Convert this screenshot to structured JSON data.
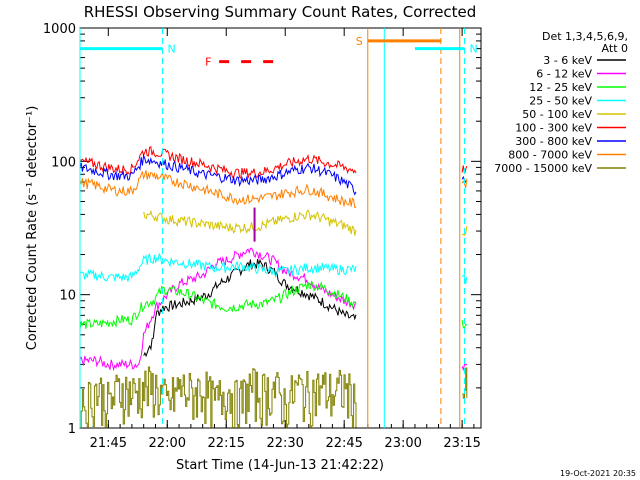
{
  "footer_timestamp": "19-Oct-2021 20:35",
  "chart_data": {
    "type": "line",
    "title": "RHESSI Observing Summary Count Rates, Corrected",
    "xlabel": "Start Time (14-Jun-13 21:42:22)",
    "ylabel": "Corrected Count Rate (s⁻¹ detector⁻¹)",
    "yscale": "log",
    "ylim": [
      1,
      1000
    ],
    "xlim_minutes": [
      21.63,
      23.33
    ],
    "x_ticks": [
      {
        "label": "21:45",
        "t": 21.75
      },
      {
        "label": "22:00",
        "t": 22.0
      },
      {
        "label": "22:15",
        "t": 22.25
      },
      {
        "label": "22:30",
        "t": 22.5
      },
      {
        "label": "22:45",
        "t": 22.75
      },
      {
        "label": "23:00",
        "t": 23.0
      },
      {
        "label": "23:15",
        "t": 23.25
      }
    ],
    "y_ticks": [
      {
        "label": "1",
        "v": 1
      },
      {
        "label": "10",
        "v": 10
      },
      {
        "label": "100",
        "v": 100
      },
      {
        "label": "1000",
        "v": 1000
      }
    ],
    "legend": {
      "placement": "right",
      "header": [
        "Det 1,3,4,5,6,9,",
        "Att 0"
      ],
      "entries": [
        {
          "name": "3 - 6 keV",
          "color": "#000000"
        },
        {
          "name": "6 - 12 keV",
          "color": "#ff00ff"
        },
        {
          "name": "12 - 25 keV",
          "color": "#00ff00"
        },
        {
          "name": "25 - 50 keV",
          "color": "#00ffff"
        },
        {
          "name": "50 - 100 keV",
          "color": "#d4c300"
        },
        {
          "name": "100 - 300 keV",
          "color": "#ff0000"
        },
        {
          "name": "300 - 800 keV",
          "color": "#0000ff"
        },
        {
          "name": "800 - 7000 keV",
          "color": "#ff8000"
        },
        {
          "name": "7000 - 15000 keV",
          "color": "#808000"
        }
      ]
    },
    "segments": [
      [
        21.63,
        23.17
      ],
      [
        23.25,
        23.27
      ]
    ],
    "series": [
      {
        "name": "3 - 6 keV",
        "color": "#000000",
        "points": [
          [
            21.9,
            3.5
          ],
          [
            21.94,
            4.5
          ],
          [
            21.95,
            7
          ],
          [
            21.98,
            8
          ],
          [
            22.05,
            8.5
          ],
          [
            22.1,
            9
          ],
          [
            22.17,
            10
          ],
          [
            22.22,
            12
          ],
          [
            22.3,
            15
          ],
          [
            22.35,
            17
          ],
          [
            22.4,
            17
          ],
          [
            22.45,
            15
          ],
          [
            22.5,
            12
          ],
          [
            22.55,
            11
          ],
          [
            22.6,
            10
          ],
          [
            22.65,
            9
          ],
          [
            22.7,
            8
          ],
          [
            22.75,
            7
          ],
          [
            22.8,
            6.5
          ]
        ]
      },
      {
        "name": "6 - 12 keV",
        "color": "#ff00ff",
        "points": [
          [
            21.63,
            3.2
          ],
          [
            21.7,
            3.2
          ],
          [
            21.75,
            3.0
          ],
          [
            21.8,
            3.0
          ],
          [
            21.85,
            3.0
          ],
          [
            21.88,
            3.0
          ],
          [
            21.9,
            5
          ],
          [
            21.95,
            8
          ],
          [
            22.0,
            10
          ],
          [
            22.05,
            12
          ],
          [
            22.1,
            13
          ],
          [
            22.15,
            14
          ],
          [
            22.2,
            17
          ],
          [
            22.25,
            18
          ],
          [
            22.3,
            20
          ],
          [
            22.35,
            22
          ],
          [
            22.4,
            20
          ],
          [
            22.45,
            18
          ],
          [
            22.5,
            15
          ],
          [
            22.55,
            14
          ],
          [
            22.6,
            13
          ],
          [
            22.65,
            11
          ],
          [
            22.7,
            10
          ],
          [
            22.75,
            9
          ],
          [
            22.8,
            8.5
          ]
        ],
        "tail": [
          [
            23.25,
            3.0
          ],
          [
            23.27,
            3.0
          ]
        ]
      },
      {
        "name": "12 - 25 keV",
        "color": "#00ff00",
        "points": [
          [
            21.63,
            6
          ],
          [
            21.7,
            6
          ],
          [
            21.75,
            6.2
          ],
          [
            21.8,
            6.5
          ],
          [
            21.85,
            6.5
          ],
          [
            21.9,
            8.5
          ],
          [
            21.94,
            9
          ],
          [
            21.98,
            11
          ],
          [
            22.05,
            10.5
          ],
          [
            22.1,
            10
          ],
          [
            22.15,
            9
          ],
          [
            22.2,
            8.5
          ],
          [
            22.25,
            8
          ],
          [
            22.3,
            8.2
          ],
          [
            22.35,
            8.5
          ],
          [
            22.4,
            8.5
          ],
          [
            22.45,
            9
          ],
          [
            22.5,
            10
          ],
          [
            22.55,
            11
          ],
          [
            22.6,
            12
          ],
          [
            22.65,
            11.5
          ],
          [
            22.7,
            10.5
          ],
          [
            22.75,
            9.5
          ],
          [
            22.8,
            8.5
          ]
        ],
        "tail": [
          [
            23.25,
            6
          ],
          [
            23.27,
            6
          ]
        ]
      },
      {
        "name": "25 - 50 keV",
        "color": "#00ffff",
        "points": [
          [
            21.63,
            14
          ],
          [
            21.7,
            14
          ],
          [
            21.75,
            13.5
          ],
          [
            21.8,
            13.5
          ],
          [
            21.85,
            13.5
          ],
          [
            21.9,
            18
          ],
          [
            21.95,
            19
          ],
          [
            22.0,
            18
          ],
          [
            22.05,
            17.5
          ],
          [
            22.1,
            17
          ],
          [
            22.15,
            16.5
          ],
          [
            22.2,
            16
          ],
          [
            22.25,
            16
          ],
          [
            22.3,
            16.5
          ],
          [
            22.35,
            16
          ],
          [
            22.4,
            15.5
          ],
          [
            22.45,
            15
          ],
          [
            22.5,
            15
          ],
          [
            22.55,
            15.5
          ],
          [
            22.6,
            16
          ],
          [
            22.65,
            16
          ],
          [
            22.7,
            15.5
          ],
          [
            22.75,
            15.5
          ],
          [
            22.8,
            15.5
          ]
        ],
        "tail": [
          [
            23.25,
            13
          ],
          [
            23.27,
            13
          ]
        ]
      },
      {
        "name": "50 - 100 keV",
        "color": "#d4c300",
        "points": [
          [
            21.9,
            40
          ],
          [
            21.95,
            39
          ],
          [
            22.0,
            37
          ],
          [
            22.05,
            36
          ],
          [
            22.1,
            35
          ],
          [
            22.15,
            34
          ],
          [
            22.2,
            33
          ],
          [
            22.25,
            32
          ],
          [
            22.3,
            32
          ],
          [
            22.35,
            32
          ],
          [
            22.4,
            33
          ],
          [
            22.45,
            35
          ],
          [
            22.5,
            37
          ],
          [
            22.55,
            39
          ],
          [
            22.6,
            40
          ],
          [
            22.65,
            38
          ],
          [
            22.7,
            35
          ],
          [
            22.75,
            33
          ],
          [
            22.8,
            30
          ]
        ],
        "tail": [
          [
            23.25,
            30
          ],
          [
            23.27,
            30
          ]
        ]
      },
      {
        "name": "100 - 300 keV",
        "color": "#ff0000",
        "points": [
          [
            21.63,
            100
          ],
          [
            21.7,
            95
          ],
          [
            21.75,
            90
          ],
          [
            21.8,
            87
          ],
          [
            21.85,
            88
          ],
          [
            21.9,
            120
          ],
          [
            21.95,
            118
          ],
          [
            22.0,
            112
          ],
          [
            22.05,
            105
          ],
          [
            22.1,
            100
          ],
          [
            22.15,
            95
          ],
          [
            22.2,
            90
          ],
          [
            22.25,
            85
          ],
          [
            22.3,
            82
          ],
          [
            22.35,
            82
          ],
          [
            22.4,
            83
          ],
          [
            22.45,
            88
          ],
          [
            22.5,
            95
          ],
          [
            22.55,
            100
          ],
          [
            22.6,
            105
          ],
          [
            22.65,
            100
          ],
          [
            22.7,
            95
          ],
          [
            22.75,
            90
          ],
          [
            22.8,
            85
          ]
        ],
        "tail": [
          [
            23.25,
            88
          ],
          [
            23.27,
            85
          ]
        ]
      },
      {
        "name": "300 - 800 keV",
        "color": "#0000ff",
        "points": [
          [
            21.63,
            90
          ],
          [
            21.7,
            85
          ],
          [
            21.75,
            80
          ],
          [
            21.8,
            78
          ],
          [
            21.85,
            78
          ],
          [
            21.9,
            105
          ],
          [
            21.95,
            100
          ],
          [
            22.0,
            95
          ],
          [
            22.05,
            90
          ],
          [
            22.1,
            85
          ],
          [
            22.15,
            80
          ],
          [
            22.2,
            78
          ],
          [
            22.25,
            75
          ],
          [
            22.3,
            72
          ],
          [
            22.35,
            72
          ],
          [
            22.4,
            73
          ],
          [
            22.45,
            77
          ],
          [
            22.5,
            82
          ],
          [
            22.55,
            87
          ],
          [
            22.6,
            90
          ],
          [
            22.65,
            85
          ],
          [
            22.7,
            78
          ],
          [
            22.75,
            70
          ],
          [
            22.8,
            60
          ]
        ],
        "tail": [
          [
            23.25,
            78
          ],
          [
            23.27,
            75
          ]
        ]
      },
      {
        "name": "800 - 7000 keV",
        "color": "#ff8000",
        "points": [
          [
            21.63,
            70
          ],
          [
            21.7,
            66
          ],
          [
            21.75,
            62
          ],
          [
            21.8,
            60
          ],
          [
            21.85,
            60
          ],
          [
            21.9,
            80
          ],
          [
            21.95,
            78
          ],
          [
            22.0,
            73
          ],
          [
            22.05,
            70
          ],
          [
            22.1,
            66
          ],
          [
            22.15,
            62
          ],
          [
            22.2,
            58
          ],
          [
            22.25,
            55
          ],
          [
            22.3,
            52
          ],
          [
            22.35,
            52
          ],
          [
            22.4,
            53
          ],
          [
            22.45,
            55
          ],
          [
            22.5,
            58
          ],
          [
            22.55,
            60
          ],
          [
            22.6,
            62
          ],
          [
            22.65,
            58
          ],
          [
            22.7,
            54
          ],
          [
            22.75,
            50
          ],
          [
            22.8,
            48
          ]
        ],
        "tail": [
          [
            23.25,
            70
          ],
          [
            23.27,
            68
          ]
        ]
      },
      {
        "name": "7000 - 15000 keV",
        "color": "#808000",
        "points": [
          [
            21.63,
            1.8
          ],
          [
            21.65,
            1.5
          ],
          [
            21.7,
            2.0
          ],
          [
            21.75,
            1.5
          ],
          [
            21.8,
            2.0
          ],
          [
            21.85,
            1.8
          ],
          [
            21.9,
            2.0
          ],
          [
            21.95,
            2.0
          ],
          [
            22.0,
            1.5
          ],
          [
            22.05,
            2.0
          ],
          [
            22.1,
            1.8
          ],
          [
            22.15,
            2.0
          ],
          [
            22.2,
            1.5
          ],
          [
            22.25,
            2.0
          ],
          [
            22.3,
            1.5
          ],
          [
            22.35,
            2.0
          ],
          [
            22.4,
            1.8
          ],
          [
            22.45,
            2.0
          ],
          [
            22.5,
            1.5
          ],
          [
            22.55,
            2.0
          ],
          [
            22.6,
            1.8
          ],
          [
            22.65,
            2.0
          ],
          [
            22.7,
            1.8
          ],
          [
            22.75,
            2.0
          ],
          [
            22.8,
            1.5
          ]
        ],
        "tail": [
          [
            23.25,
            1.8
          ],
          [
            23.27,
            2.0
          ]
        ]
      }
    ],
    "spike": {
      "t": 22.37,
      "v_low": 25,
      "v_high": 45,
      "color": "#a000a0"
    },
    "intervals": [
      {
        "label": "N",
        "color": "#00ffff",
        "start": 21.63,
        "end": 21.98,
        "level": 700
      },
      {
        "label": "N",
        "color": "#00ffff",
        "start": 23.05,
        "end": 23.26,
        "level": 700
      },
      {
        "label": "S",
        "color": "#ff8000",
        "start": 22.85,
        "end": 23.16,
        "level": 800
      }
    ],
    "flare_marker": {
      "label": "F",
      "color": "#ff0000",
      "start": 22.22,
      "end": 22.45,
      "level": 560
    },
    "vlines": [
      {
        "t": 21.63,
        "color": "#00ffff",
        "style": "solid"
      },
      {
        "t": 21.98,
        "color": "#00ffff",
        "style": "dashed"
      },
      {
        "t": 22.85,
        "color": "#ff8000",
        "style": "solid"
      },
      {
        "t": 22.92,
        "color": "#00ffff",
        "style": "solid"
      },
      {
        "t": 23.16,
        "color": "#ff8000",
        "style": "dashed"
      },
      {
        "t": 23.24,
        "color": "#ff8000",
        "style": "solid"
      },
      {
        "t": 23.26,
        "color": "#00ffff",
        "style": "dashed"
      }
    ]
  }
}
